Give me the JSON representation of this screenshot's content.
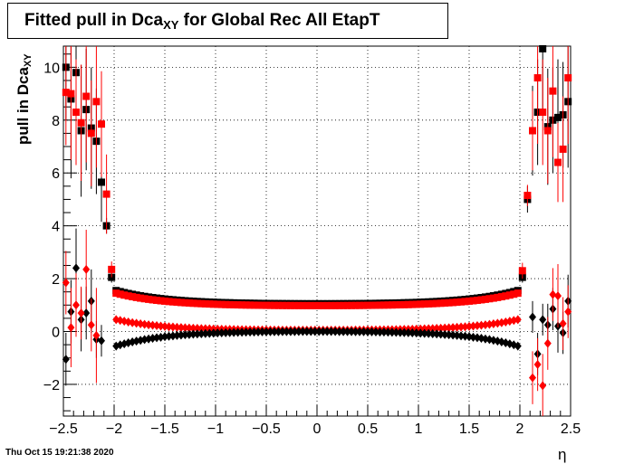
{
  "title": {
    "main": "Fitted pull in Dca",
    "sub": "XY",
    "rest": " for Global Rec All EtapT"
  },
  "ylabel": {
    "main": "pull in Dca",
    "sub": "XY"
  },
  "xlabel": "η",
  "timestamp": "Thu Oct 15 19:21:38 2020",
  "chart_data": {
    "type": "scatter",
    "xlim": [
      -2.5,
      2.5
    ],
    "ylim": [
      -3.2,
      10.8
    ],
    "grid": true,
    "x_ticks": [
      -2.5,
      -2,
      -1.5,
      -1,
      -0.5,
      0,
      0.5,
      1,
      1.5,
      2,
      2.5
    ],
    "x_tick_labels": [
      "−2.5",
      "−2",
      "−1.5",
      "−1",
      "−0.5",
      "0",
      "0.5",
      "1",
      "1.5",
      "2",
      "2.5"
    ],
    "y_ticks": [
      -2,
      0,
      2,
      4,
      6,
      8,
      10
    ],
    "y_tick_labels": [
      "−2",
      "0",
      "2",
      "4",
      "6",
      "8",
      "10"
    ],
    "series": [
      {
        "marker": "square",
        "color": "#000000",
        "points": [
          [
            -2.475,
            10.0
          ],
          [
            -2.425,
            8.8
          ],
          [
            -2.375,
            9.8
          ],
          [
            -2.325,
            7.6
          ],
          [
            -2.275,
            8.4
          ],
          [
            -2.225,
            7.7
          ],
          [
            -2.175,
            7.2
          ],
          [
            -2.125,
            5.65
          ],
          [
            -2.075,
            4.0
          ],
          [
            -2.025,
            2.05
          ],
          [
            2.025,
            2.05
          ],
          [
            2.075,
            5.0
          ],
          [
            2.125,
            7.6
          ],
          [
            2.175,
            8.3
          ],
          [
            2.225,
            10.7
          ],
          [
            2.275,
            7.75
          ],
          [
            2.325,
            8.0
          ],
          [
            2.375,
            8.1
          ],
          [
            2.425,
            8.2
          ],
          [
            2.475,
            8.7
          ]
        ],
        "yerr": [
          2.0,
          3.0,
          2.5,
          2.5,
          2.3,
          2.3,
          2.0,
          1.5,
          0.3,
          0.2,
          0.2,
          0.5,
          1.7,
          2.0,
          2.5,
          2.2,
          2.0,
          2.2,
          2.0,
          2.5
        ]
      },
      {
        "marker": "square",
        "color": "#ff0000",
        "points": [
          [
            -2.475,
            9.05
          ],
          [
            -2.425,
            9.0
          ],
          [
            -2.375,
            8.3
          ],
          [
            -2.325,
            7.9
          ],
          [
            -2.275,
            8.9
          ],
          [
            -2.225,
            7.5
          ],
          [
            -2.175,
            8.7
          ],
          [
            -2.125,
            7.85
          ],
          [
            -2.075,
            5.2
          ],
          [
            -2.025,
            2.35
          ],
          [
            2.025,
            2.3
          ],
          [
            2.075,
            5.15
          ],
          [
            2.125,
            7.6
          ],
          [
            2.175,
            9.6
          ],
          [
            2.225,
            8.3
          ],
          [
            2.275,
            7.6
          ],
          [
            2.325,
            9.1
          ],
          [
            2.375,
            6.4
          ],
          [
            2.425,
            6.9
          ],
          [
            2.475,
            9.6
          ]
        ],
        "yerr": [
          2.0,
          2.5,
          2.0,
          2.2,
          2.5,
          2.0,
          2.5,
          2.0,
          1.5,
          0.3,
          0.3,
          0.4,
          1.5,
          2.5,
          2.0,
          2.0,
          2.5,
          1.5,
          2.0,
          2.5
        ]
      },
      {
        "marker": "diamond",
        "color": "#000000",
        "points": [
          [
            -2.475,
            -1.05
          ],
          [
            -2.425,
            0.75
          ],
          [
            -2.375,
            2.4
          ],
          [
            -2.325,
            0.45
          ],
          [
            -2.275,
            0.7
          ],
          [
            -2.225,
            1.15
          ],
          [
            -2.175,
            -0.3
          ],
          [
            -2.125,
            -0.35
          ],
          [
            2.125,
            0.55
          ],
          [
            2.175,
            -0.85
          ],
          [
            2.225,
            0.45
          ],
          [
            2.275,
            0.25
          ],
          [
            2.325,
            0.85
          ],
          [
            2.375,
            0.2
          ],
          [
            2.425,
            -0.05
          ],
          [
            2.475,
            1.15
          ]
        ],
        "yerr": [
          1.0,
          1.2,
          1.5,
          1.2,
          1.0,
          1.2,
          0.7,
          0.6,
          0.6,
          0.8,
          0.6,
          0.8,
          0.8,
          1.0,
          0.8,
          1.0
        ]
      },
      {
        "marker": "diamond",
        "color": "#ff0000",
        "points": [
          [
            -2.475,
            1.85
          ],
          [
            -2.425,
            0.15
          ],
          [
            -2.375,
            1.0
          ],
          [
            -2.325,
            0.7
          ],
          [
            -2.275,
            2.35
          ],
          [
            -2.225,
            0.25
          ],
          [
            -2.175,
            -0.15
          ],
          [
            2.125,
            -1.75
          ],
          [
            2.175,
            -1.25
          ],
          [
            2.225,
            -2.05
          ],
          [
            2.275,
            -0.45
          ],
          [
            2.325,
            1.4
          ],
          [
            2.375,
            1.35
          ],
          [
            2.425,
            0.3
          ],
          [
            2.475,
            0.75
          ]
        ],
        "yerr": [
          1.2,
          1.5,
          1.2,
          1.0,
          1.5,
          1.0,
          1.8,
          1.0,
          1.0,
          1.2,
          1.0,
          1.0,
          1.2,
          1.0,
          1.0
        ]
      }
    ],
    "dense_series": [
      {
        "marker": "square",
        "color": "#000000",
        "shape": "cosh",
        "x_range": [
          -1.98,
          1.98
        ],
        "step": 0.04,
        "center": 1.05,
        "edge": 1.55
      },
      {
        "marker": "square",
        "color": "#ff0000",
        "shape": "cosh",
        "x_range": [
          -1.98,
          1.98
        ],
        "step": 0.04,
        "center": 0.98,
        "edge": 1.45
      },
      {
        "marker": "diamond",
        "color": "#ff0000",
        "shape": "cosh",
        "x_range": [
          -1.98,
          1.98
        ],
        "step": 0.04,
        "center": 0.05,
        "edge": 0.45
      },
      {
        "marker": "diamond",
        "color": "#000000",
        "shape": "cosh",
        "x_range": [
          -1.98,
          1.98
        ],
        "step": 0.04,
        "center": 0.0,
        "edge": -0.55
      }
    ]
  }
}
